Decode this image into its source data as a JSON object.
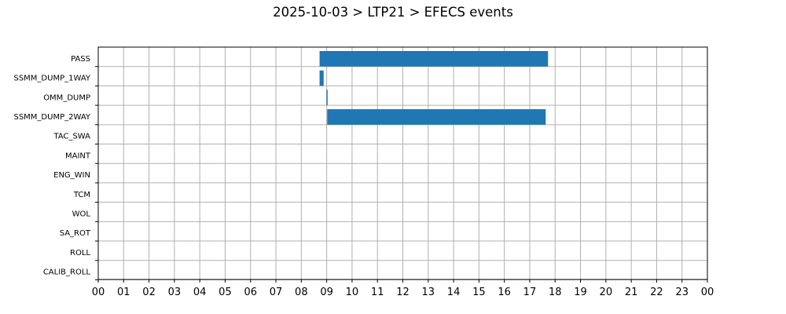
{
  "chart_data": {
    "type": "bar",
    "orientation": "horizontal",
    "title": "2025-10-03 > LTP21 > EFECS events",
    "xlabel": "",
    "ylabel": "",
    "xlim": [
      0,
      24
    ],
    "x_tick_labels": [
      "00",
      "01",
      "02",
      "03",
      "04",
      "05",
      "06",
      "07",
      "08",
      "09",
      "10",
      "11",
      "12",
      "13",
      "14",
      "15",
      "16",
      "17",
      "18",
      "19",
      "20",
      "21",
      "22",
      "23",
      "00"
    ],
    "categories": [
      "PASS",
      "SSMM_DUMP_1WAY",
      "OMM_DUMP",
      "SSMM_DUMP_2WAY",
      "TAC_SWA",
      "MAINT",
      "ENG_WIN",
      "TCM",
      "WOL",
      "SA_ROT",
      "ROLL",
      "CALIB_ROLL"
    ],
    "events": [
      {
        "category": "PASS",
        "start": 8.72,
        "end": 17.72
      },
      {
        "category": "SSMM_DUMP_1WAY",
        "start": 8.72,
        "end": 8.88
      },
      {
        "category": "OMM_DUMP",
        "start": 8.99,
        "end": 9.01
      },
      {
        "category": "SSMM_DUMP_2WAY",
        "start": 9.02,
        "end": 17.63
      }
    ],
    "grid": true,
    "bar_color": "#1f77b4",
    "grid_color": "#b0b0b0"
  }
}
